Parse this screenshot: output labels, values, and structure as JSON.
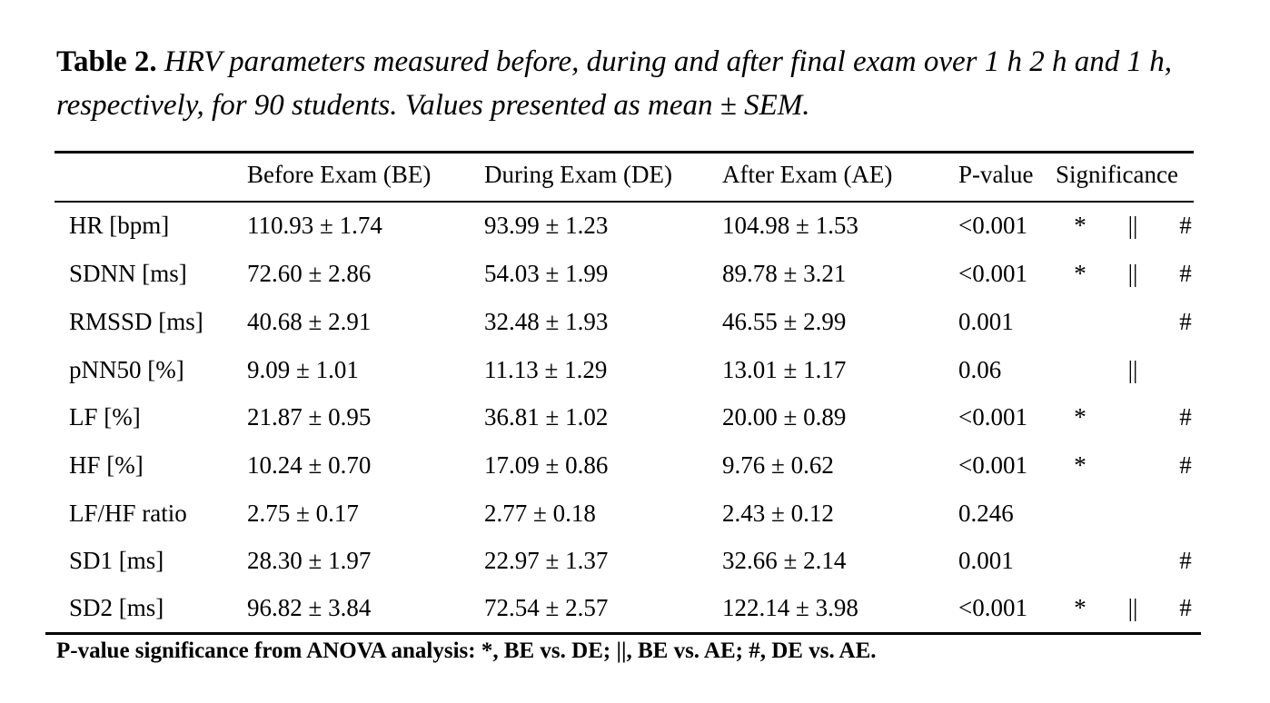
{
  "caption": {
    "label": "Table 2.",
    "text": "HRV parameters measured before, during and after final exam over 1 h 2 h and 1 h, respectively, for 90 students. Values presented as mean ± SEM."
  },
  "table": {
    "headers": [
      "",
      "Before Exam (BE)",
      "During Exam (DE)",
      "After Exam (AE)",
      "P-value",
      "Significance"
    ],
    "rows": [
      {
        "param": "HR [bpm]",
        "be": "110.93 ± 1.74",
        "de": "93.99 ± 1.23",
        "ae": "104.98 ± 1.53",
        "p": "<0.001",
        "s1": "*",
        "s2": "||",
        "s3": "#"
      },
      {
        "param": "SDNN [ms]",
        "be": "72.60 ± 2.86",
        "de": "54.03 ± 1.99",
        "ae": "89.78 ± 3.21",
        "p": "<0.001",
        "s1": "*",
        "s2": "||",
        "s3": "#"
      },
      {
        "param": "RMSSD [ms]",
        "be": "40.68 ± 2.91",
        "de": "32.48 ± 1.93",
        "ae": "46.55 ± 2.99",
        "p": "0.001",
        "s1": "",
        "s2": "",
        "s3": "#"
      },
      {
        "param": "pNN50 [%]",
        "be": "9.09 ± 1.01",
        "de": "11.13 ± 1.29",
        "ae": "13.01 ± 1.17",
        "p": "0.06",
        "s1": "",
        "s2": "||",
        "s3": ""
      },
      {
        "param": "LF [%]",
        "be": "21.87 ± 0.95",
        "de": "36.81 ± 1.02",
        "ae": "20.00 ± 0.89",
        "p": "<0.001",
        "s1": "*",
        "s2": "",
        "s3": "#"
      },
      {
        "param": "HF [%]",
        "be": "10.24 ± 0.70",
        "de": "17.09 ± 0.86",
        "ae": "9.76 ± 0.62",
        "p": "<0.001",
        "s1": "*",
        "s2": "",
        "s3": "#"
      },
      {
        "param": "LF/HF ratio",
        "be": "2.75 ± 0.17",
        "de": "2.77 ± 0.18",
        "ae": "2.43 ± 0.12",
        "p": "0.246",
        "s1": "",
        "s2": "",
        "s3": ""
      },
      {
        "param": "SD1 [ms]",
        "be": "28.30 ± 1.97",
        "de": "22.97 ± 1.37",
        "ae": "32.66 ± 2.14",
        "p": "0.001",
        "s1": "",
        "s2": "",
        "s3": "#"
      },
      {
        "param": "SD2 [ms]",
        "be": "96.82 ± 3.84",
        "de": "72.54 ± 2.57",
        "ae": "122.14 ± 3.98",
        "p": "<0.001",
        "s1": "*",
        "s2": "||",
        "s3": "#"
      }
    ]
  },
  "footnote": "P-value significance from ANOVA analysis: *, BE vs. DE; ||, BE vs. AE; #, DE vs. AE."
}
